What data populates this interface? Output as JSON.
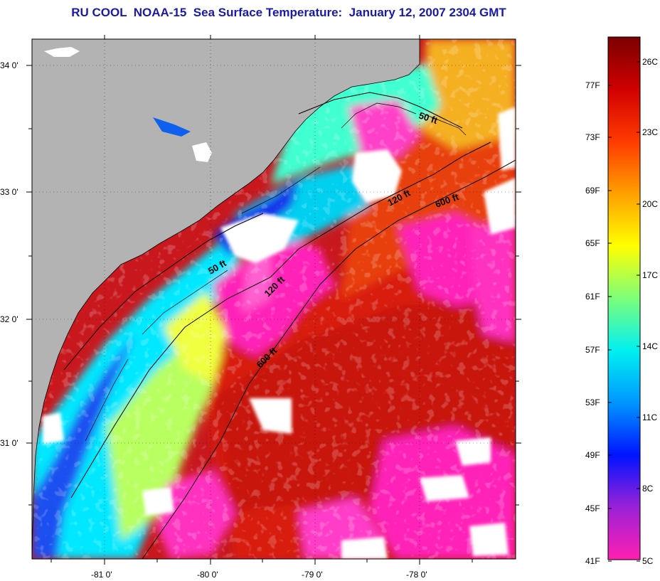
{
  "title": "RU COOL  NOAA-15  Sea Surface Temperature:  January 12, 2007 2304 GMT",
  "map": {
    "lat_labels": [
      "34 0'",
      "33 0'",
      "32 0'",
      "31 0'"
    ],
    "lon_labels": [
      "-81 0'",
      "-80 0'",
      "-79 0'",
      "-78 0'"
    ],
    "isobath_labels": [
      {
        "text": "50 ft"
      },
      {
        "text": "120 ft"
      },
      {
        "text": "600 ft"
      },
      {
        "text": "50 ft"
      },
      {
        "text": "120 ft"
      },
      {
        "text": "600 ft"
      }
    ],
    "colors": {
      "land": "#b3b3b3",
      "cloud": "#ffffff",
      "warm": "#dd1a08",
      "cold": "#ff1fb8"
    }
  },
  "colorbar": {
    "fahrenheit_labels": [
      "77F",
      "73F",
      "69F",
      "65F",
      "61F",
      "57F",
      "53F",
      "49F",
      "45F",
      "41F"
    ],
    "celsius_labels": [
      "26C",
      "23C",
      "20C",
      "17C",
      "14C",
      "11C",
      "8C",
      "5C"
    ],
    "stops": [
      "#ff1fb0",
      "#9a22d6",
      "#0014ff",
      "#0096ff",
      "#00f0f0",
      "#7dff7a",
      "#ffff00",
      "#ffa000",
      "#ff3a00",
      "#d00000",
      "#7a0000"
    ]
  }
}
